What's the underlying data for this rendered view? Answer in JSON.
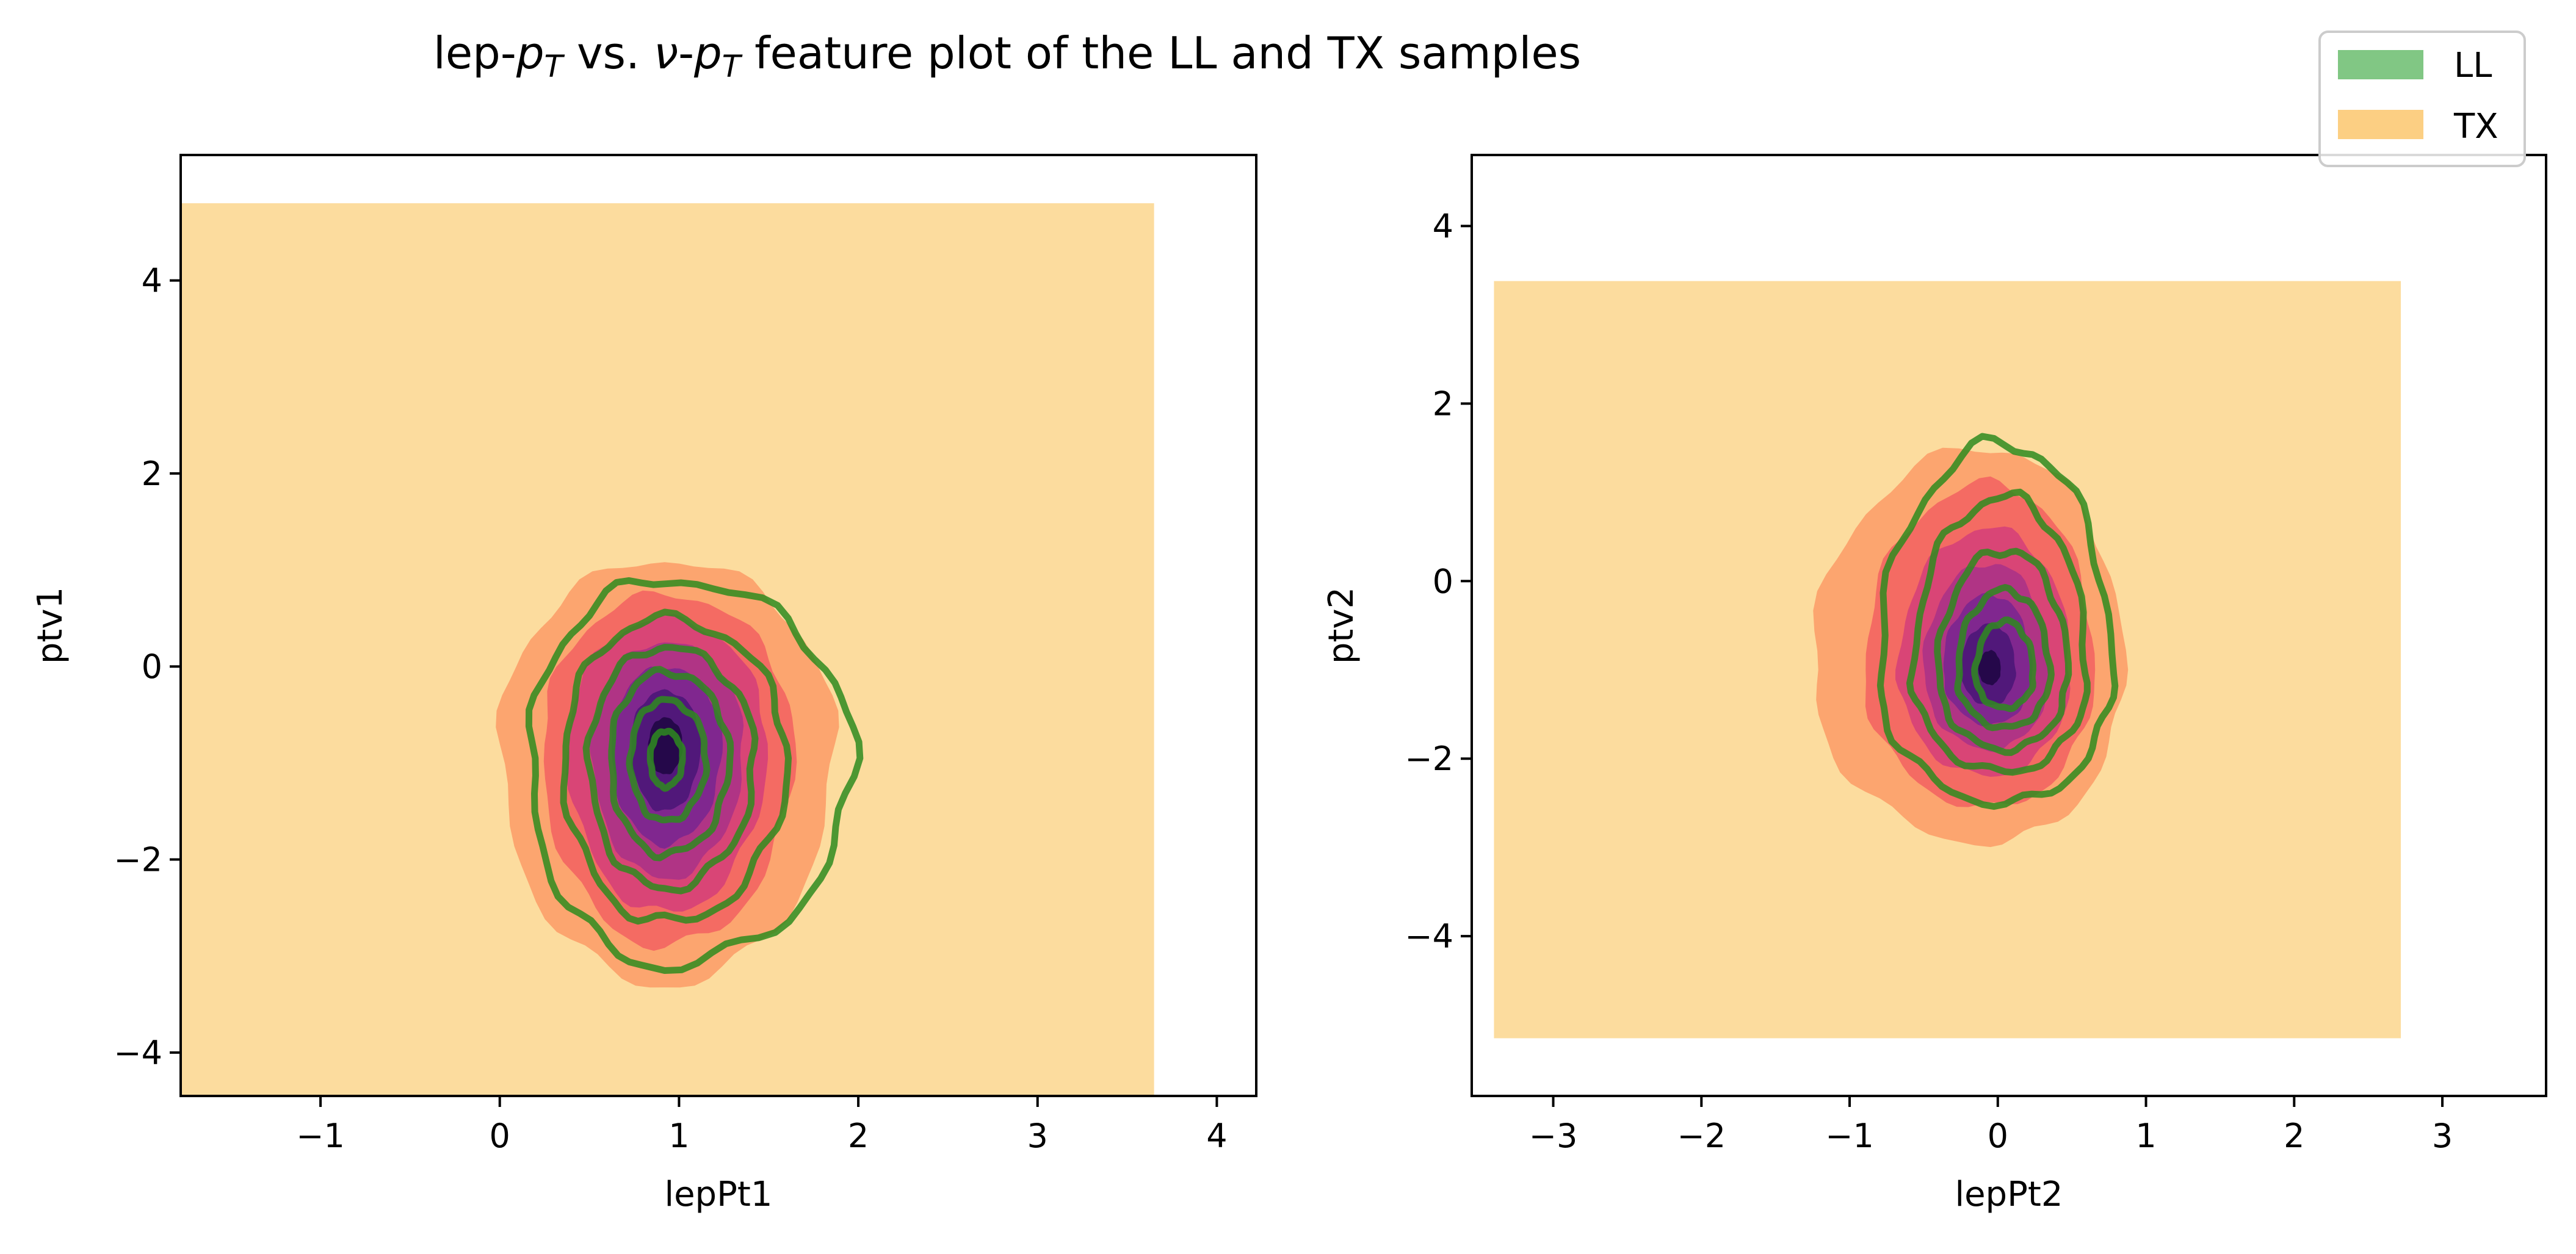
{
  "figure": {
    "title_parts": [
      {
        "text": "lep-",
        "style": "normal"
      },
      {
        "text": "p",
        "style": "italic"
      },
      {
        "text": "T",
        "style": "italic-sub"
      },
      {
        "text": " vs. ",
        "style": "normal"
      },
      {
        "text": "ν",
        "style": "italic"
      },
      {
        "text": "-",
        "style": "normal"
      },
      {
        "text": "p",
        "style": "italic"
      },
      {
        "text": "T",
        "style": "italic-sub"
      },
      {
        "text": " feature plot of the LL and TX samples",
        "style": "normal"
      }
    ]
  },
  "legend": {
    "items": [
      {
        "label": "LL",
        "color": "#4caf50"
      },
      {
        "label": "TX",
        "color": "#fbbf5a"
      }
    ]
  },
  "colors": {
    "tx_background": "#fcdc9e",
    "density_levels": [
      "#fca56f",
      "#f46b63",
      "#d94576",
      "#b03485",
      "#80278f",
      "#51187a",
      "#25084a"
    ],
    "ll_contour": "#2e8b1f",
    "axes": "#000000"
  },
  "chart_data": [
    {
      "type": "contour",
      "name": "left-panel",
      "xlabel": "lepPt1",
      "ylabel": "ptv1",
      "xlim": [
        -1.78,
        4.22
      ],
      "ylim": [
        -4.45,
        5.3
      ],
      "xticks": [
        -1,
        0,
        1,
        2,
        3,
        4
      ],
      "xtick_labels": [
        "−1",
        "0",
        "1",
        "2",
        "3",
        "4"
      ],
      "yticks": [
        -4,
        -2,
        0,
        2,
        4
      ],
      "ytick_labels": [
        "−4",
        "−2",
        "0",
        "2",
        "4"
      ],
      "tx_extent": {
        "x": [
          -1.78,
          3.65
        ],
        "y": [
          -4.45,
          4.8
        ]
      },
      "tx_density": {
        "center": [
          0.92,
          -0.8
        ],
        "levels": [
          {
            "rx": [
              0.92,
              0.95
            ],
            "ry": [
              2.5,
              1.9
            ]
          },
          {
            "rx": [
              0.68,
              0.72
            ],
            "ry": [
              2.1,
              1.55
            ]
          },
          {
            "rx": [
              0.54,
              0.57
            ],
            "ry": [
              1.75,
              1.3
            ]
          },
          {
            "rx": [
              0.41,
              0.44
            ],
            "ry": [
              1.4,
              1.05
            ]
          },
          {
            "rx": [
              0.3,
              0.32
            ],
            "ry": [
              1.05,
              0.8
            ]
          },
          {
            "rx": [
              0.19,
              0.2
            ],
            "ry": [
              0.7,
              0.55
            ]
          },
          {
            "rx": [
              0.09,
              0.1
            ],
            "ry": [
              0.32,
              0.27
            ]
          }
        ]
      },
      "ll_density": {
        "center": [
          0.92,
          -0.95
        ],
        "levels": [
          {
            "rx": [
              0.75,
              1.05
            ],
            "ry": [
              2.15,
              1.85
            ]
          },
          {
            "rx": [
              0.56,
              0.68
            ],
            "ry": [
              1.7,
              1.45
            ]
          },
          {
            "rx": [
              0.42,
              0.5
            ],
            "ry": [
              1.35,
              1.15
            ]
          },
          {
            "rx": [
              0.3,
              0.36
            ],
            "ry": [
              1.0,
              0.9
            ]
          },
          {
            "rx": [
              0.19,
              0.23
            ],
            "ry": [
              0.65,
              0.6
            ]
          },
          {
            "rx": [
              0.08,
              0.1
            ],
            "ry": [
              0.3,
              0.28
            ]
          }
        ]
      }
    },
    {
      "type": "contour",
      "name": "right-panel",
      "xlabel": "lepPt2",
      "ylabel": "ptv2",
      "xlim": [
        -3.55,
        3.7
      ],
      "ylim": [
        -5.8,
        4.8
      ],
      "xticks": [
        -3,
        -2,
        -1,
        0,
        1,
        2,
        3
      ],
      "xtick_labels": [
        "−3",
        "−2",
        "−1",
        "0",
        "1",
        "2",
        "3"
      ],
      "yticks": [
        -4,
        -2,
        0,
        2,
        4
      ],
      "ytick_labels": [
        "−4",
        "−2",
        "0",
        "2",
        "4"
      ],
      "tx_extent": {
        "x": [
          -3.4,
          2.72
        ],
        "y": [
          -5.15,
          3.38
        ]
      },
      "tx_density": {
        "center": [
          -0.05,
          -1.0
        ],
        "levels": [
          {
            "rx": [
              1.2,
              0.9
            ],
            "ry": [
              1.95,
              2.5
            ]
          },
          {
            "rx": [
              0.85,
              0.7
            ],
            "ry": [
              1.55,
              2.1
            ]
          },
          {
            "rx": [
              0.62,
              0.54
            ],
            "ry": [
              1.2,
              1.6
            ]
          },
          {
            "rx": [
              0.45,
              0.4
            ],
            "ry": [
              0.9,
              1.2
            ]
          },
          {
            "rx": [
              0.32,
              0.28
            ],
            "ry": [
              0.62,
              0.85
            ]
          },
          {
            "rx": [
              0.2,
              0.17
            ],
            "ry": [
              0.4,
              0.52
            ]
          },
          {
            "rx": [
              0.08,
              0.07
            ],
            "ry": [
              0.17,
              0.22
            ]
          }
        ]
      },
      "ll_density": {
        "center": [
          0.05,
          -1.05
        ],
        "levels": [
          {
            "rx": [
              0.85,
              0.72
            ],
            "ry": [
              1.45,
              2.6
            ]
          },
          {
            "rx": [
              0.62,
              0.55
            ],
            "ry": [
              1.1,
              2.0
            ]
          },
          {
            "rx": [
              0.45,
              0.42
            ],
            "ry": [
              0.85,
              1.4
            ]
          },
          {
            "rx": [
              0.32,
              0.3
            ],
            "ry": [
              0.6,
              0.95
            ]
          },
          {
            "rx": [
              0.2,
              0.19
            ],
            "ry": [
              0.38,
              0.6
            ]
          }
        ]
      }
    }
  ]
}
